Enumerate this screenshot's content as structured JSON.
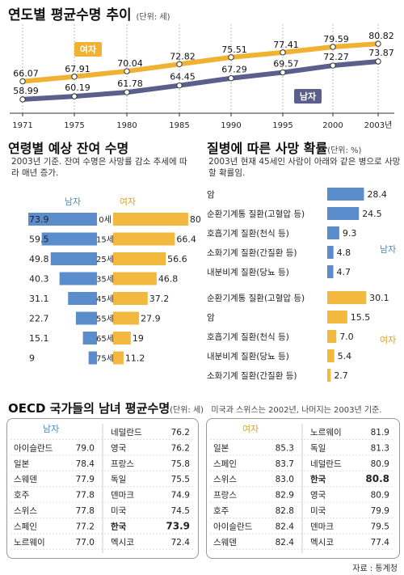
{
  "chart_data": [
    {
      "type": "line",
      "title": "연도별 평균수명 추이",
      "unit": "(단위: 세)",
      "x": [
        "1971",
        "1975",
        "1980",
        "1985",
        "1990",
        "1995",
        "2000",
        "2003년"
      ],
      "series": [
        {
          "name": "여자",
          "values": [
            66.07,
            67.91,
            70.04,
            72.82,
            75.51,
            77.41,
            79.59,
            80.82
          ]
        },
        {
          "name": "남자",
          "values": [
            58.99,
            60.19,
            61.78,
            64.45,
            67.29,
            69.57,
            72.27,
            73.87
          ]
        }
      ],
      "colors": {
        "female": "#f0b232",
        "male": "#5a5f8c"
      }
    },
    {
      "type": "bar",
      "title": "연령별 예상 잔여 수명",
      "note": "2003년 기준. 잔여 수명은 사망률 감소 추세에 따라 매년 증가.",
      "categories": [
        "0세",
        "15세",
        "25세",
        "35세",
        "45세",
        "55세",
        "65세",
        "75세"
      ],
      "series": [
        {
          "name": "남자",
          "values": [
            73.9,
            59.5,
            49.8,
            40.3,
            31.1,
            22.7,
            15.1,
            9
          ]
        },
        {
          "name": "여자",
          "values": [
            80.8,
            66.4,
            56.6,
            46.8,
            37.2,
            27.9,
            19,
            11.2
          ]
        }
      ]
    },
    {
      "type": "bar",
      "title": "질병에 따른 사망 확률",
      "unit": "(단위: %)",
      "note": "2003년 현재 45세인 사람이 아래와 같은 병으로 사망할 확률임.",
      "series": [
        {
          "name": "남자",
          "categories": [
            "암",
            "순환기계통 질환(고혈압 등)",
            "호흡기계 질환(천식 등)",
            "소화기계 질환(간질환 등)",
            "내분비계 질환(당뇨 등)"
          ],
          "values": [
            28.4,
            24.5,
            9.3,
            4.8,
            4.7
          ]
        },
        {
          "name": "여자",
          "categories": [
            "순환기계통 질환(고혈압 등)",
            "암",
            "호흡기계 질환(천식 등)",
            "내분비계 질환(당뇨 등)",
            "소화기계 질환(간질환 등)"
          ],
          "values": [
            30.1,
            15.5,
            7.0,
            5.4,
            2.7
          ]
        }
      ],
      "value_labels": {
        "male": [
          "28.4",
          "24.5",
          "9.3",
          "4.8",
          "4.7"
        ],
        "female": [
          "30.1",
          "15.5",
          "7.0",
          "5.4",
          "2.7"
        ]
      }
    },
    {
      "type": "table",
      "title": "OECD 국가들의 남녀 평균수명",
      "unit": "(단위: 세)",
      "note": "미국과 스위스는 2002년, 나머지는 2003년 기준.",
      "male": {
        "label": "남자",
        "left": [
          [
            "아이슬란드",
            "79.0"
          ],
          [
            "일본",
            "78.4"
          ],
          [
            "스웨덴",
            "77.9"
          ],
          [
            "호주",
            "77.8"
          ],
          [
            "스위스",
            "77.8"
          ],
          [
            "스페인",
            "77.2"
          ],
          [
            "노르웨이",
            "77.0"
          ]
        ],
        "right": [
          [
            "네덜란드",
            "76.2"
          ],
          [
            "영국",
            "76.2"
          ],
          [
            "프랑스",
            "75.8"
          ],
          [
            "독일",
            "75.5"
          ],
          [
            "덴마크",
            "74.9"
          ],
          [
            "미국",
            "74.5"
          ],
          [
            "한국",
            "73.9"
          ],
          [
            "멕시코",
            "72.4"
          ]
        ]
      },
      "female": {
        "label": "여자",
        "left": [
          [
            "일본",
            "85.3"
          ],
          [
            "스페인",
            "83.7"
          ],
          [
            "스위스",
            "83.0"
          ],
          [
            "프랑스",
            "82.9"
          ],
          [
            "호주",
            "82.8"
          ],
          [
            "아이슬란드",
            "82.4"
          ],
          [
            "스웨덴",
            "82.4"
          ]
        ],
        "right": [
          [
            "노르웨이",
            "81.9"
          ],
          [
            "독일",
            "81.3"
          ],
          [
            "네덜란드",
            "80.9"
          ],
          [
            "한국",
            "80.8"
          ],
          [
            "영국",
            "80.9"
          ],
          [
            "미국",
            "79.9"
          ],
          [
            "덴마크",
            "79.5"
          ],
          [
            "멕시코",
            "77.4"
          ]
        ]
      },
      "highlight": "한국"
    }
  ],
  "source": "자료 : 통계청"
}
